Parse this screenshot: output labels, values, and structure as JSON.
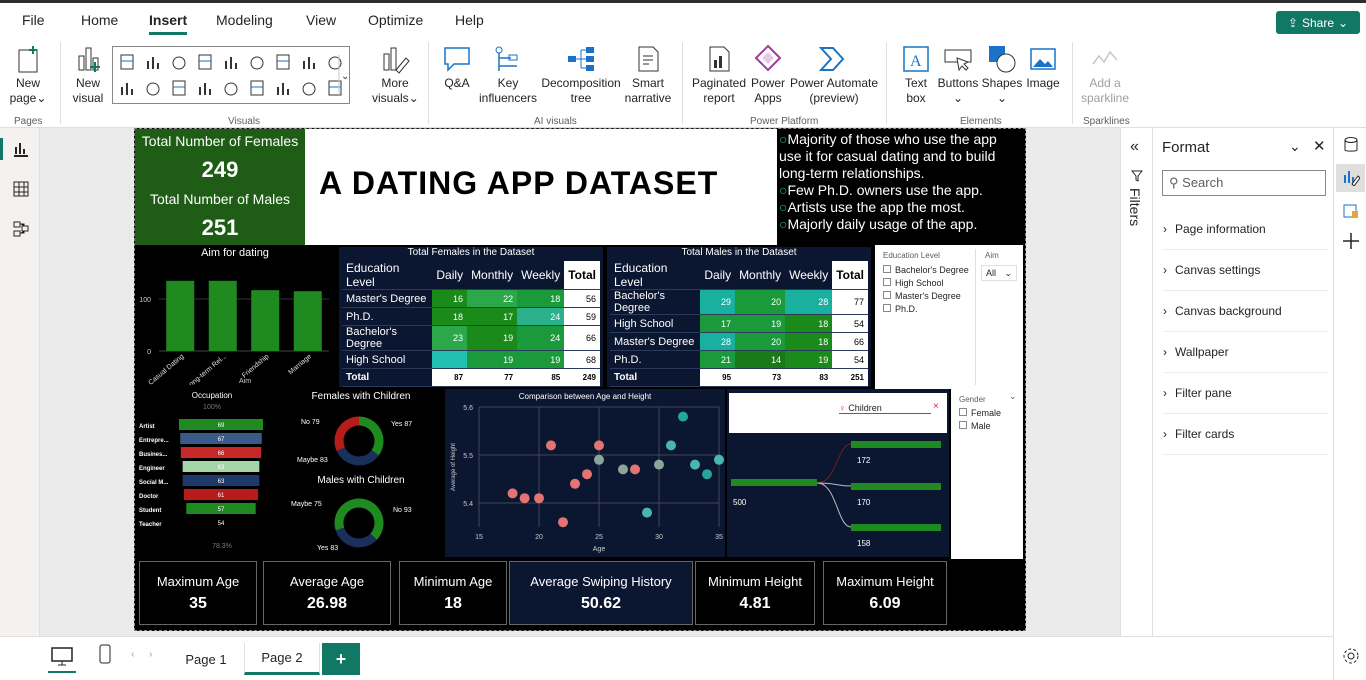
{
  "menu": [
    "File",
    "Home",
    "Insert",
    "Modeling",
    "View",
    "Optimize",
    "Help"
  ],
  "share": "Share",
  "ribbon": {
    "new_page": [
      "New",
      "page"
    ],
    "new_visual": [
      "New",
      "visual"
    ],
    "more_visuals": [
      "More",
      "visuals"
    ],
    "qa": "Q&A",
    "key_influencers": [
      "Key",
      "influencers"
    ],
    "decomposition": [
      "Decomposition",
      "tree"
    ],
    "smart_narrative": [
      "Smart",
      "narrative"
    ],
    "paginated": [
      "Paginated",
      "report"
    ],
    "power_apps": [
      "Power",
      "Apps"
    ],
    "power_automate": [
      "Power Automate",
      "(preview)"
    ],
    "text_box": [
      "Text",
      "box"
    ],
    "buttons": "Buttons",
    "shapes": "Shapes",
    "image": "Image",
    "sparkline": [
      "Add a",
      "sparkline"
    ],
    "groups": [
      "Pages",
      "Visuals",
      "AI visuals",
      "Power Platform",
      "Elements",
      "Sparklines"
    ]
  },
  "report": {
    "females_label": "Total Number of Females",
    "females_value": "249",
    "males_label": "Total Number of Males",
    "males_value": "251",
    "title": "A DATING APP DATASET",
    "insights": [
      "Majority of those who use the app use it for casual dating and to build long-term relationships.",
      "Few Ph.D. owners use the app.",
      "Artists use the app the most.",
      "Majorly daily usage of the app."
    ],
    "aim_chart": {
      "title": "Aim for dating",
      "ylabel": "Aim",
      "yticks": [
        "100",
        "0"
      ],
      "categories": [
        "Casual Dating",
        "Long-term Rel...",
        "Friendship",
        "Marriage"
      ],
      "values": [
        135,
        135,
        117,
        115
      ],
      "ylim": [
        0,
        150
      ]
    },
    "fem_table": {
      "title": "Total Females in the Dataset",
      "headers": [
        "Education Level",
        "Daily",
        "Monthly",
        "Weekly",
        "Total"
      ],
      "rows": [
        [
          "Master's Degree",
          "16",
          "22",
          "18",
          "56"
        ],
        [
          "Ph.D.",
          "18",
          "17",
          "24",
          "59"
        ],
        [
          "Bachelor's Degree",
          "23",
          "19",
          "24",
          "66"
        ],
        [
          "High School",
          "",
          "19",
          "19",
          "68"
        ]
      ],
      "total": [
        "Total",
        "87",
        "77",
        "85",
        "249"
      ]
    },
    "male_table": {
      "title": "Total Males in the Dataset",
      "headers": [
        "Education Level",
        "Daily",
        "Monthly",
        "Weekly",
        "Total"
      ],
      "rows": [
        [
          "Bachelor's Degree",
          "29",
          "20",
          "28",
          "77"
        ],
        [
          "High School",
          "17",
          "19",
          "18",
          "54"
        ],
        [
          "Master's Degree",
          "28",
          "20",
          "18",
          "66"
        ],
        [
          "Ph.D.",
          "21",
          "14",
          "19",
          "54"
        ]
      ],
      "total": [
        "Total",
        "95",
        "73",
        "83",
        "251"
      ]
    },
    "edu_slicer": {
      "title": "Education Level",
      "items": [
        "Bachelor's Degree",
        "High School",
        "Master's Degree",
        "Ph.D."
      ]
    },
    "aim_slicer": {
      "title": "Aim",
      "value": "All"
    },
    "occupation": {
      "title": "Occupation",
      "top": "100%",
      "bottom": "78.3%",
      "items": [
        [
          "Artist",
          "69"
        ],
        [
          "Entrepre...",
          "67"
        ],
        [
          "Busines...",
          "66"
        ],
        [
          "Engineer",
          "63"
        ],
        [
          "Social M...",
          "63"
        ],
        [
          "Doctor",
          "61"
        ],
        [
          "Student",
          "57"
        ],
        [
          "Teacher",
          "54"
        ]
      ]
    },
    "fem_children": {
      "title": "Females with Children",
      "no": "No 79",
      "yes": "Yes 87",
      "maybe": "Maybe 83"
    },
    "male_children": {
      "title": "Males with Children",
      "no": "No 93",
      "yes": "Yes 83",
      "maybe": "Maybe 75"
    },
    "scatter": {
      "title": "Comparison between Age and Height",
      "xlabel": "Age",
      "ylabel": "Average of Height",
      "xticks": [
        "15",
        "20",
        "25",
        "30",
        "35"
      ],
      "yticks": [
        "5.6",
        "5.5",
        "5.4"
      ]
    },
    "decomp": {
      "search": "Children",
      "root": "500",
      "nodes": [
        "172",
        "170",
        "158"
      ]
    },
    "gender_slicer": {
      "title": "Gender",
      "items": [
        "Female",
        "Male"
      ]
    },
    "cards": [
      [
        "Maximum Age",
        "35"
      ],
      [
        "Average Age",
        "26.98"
      ],
      [
        "Minimum Age",
        "18"
      ],
      [
        "Average Swiping History",
        "50.62"
      ],
      [
        "Minimum Height",
        "4.81"
      ],
      [
        "Maximum Height",
        "6.09"
      ]
    ]
  },
  "chart_data": {
    "type": "scatter",
    "title": "Comparison between Age and Height",
    "xlabel": "Age",
    "ylabel": "Average of Height",
    "xlim": [
      15,
      35
    ],
    "ylim": [
      5.35,
      5.6
    ],
    "points": [
      [
        17.8,
        5.42
      ],
      [
        18.8,
        5.41
      ],
      [
        20,
        5.41
      ],
      [
        21,
        5.52
      ],
      [
        22,
        5.36
      ],
      [
        23,
        5.44
      ],
      [
        24,
        5.46
      ],
      [
        25,
        5.52
      ],
      [
        25,
        5.49
      ],
      [
        27,
        5.47
      ],
      [
        28,
        5.47
      ],
      [
        29,
        5.38
      ],
      [
        30,
        5.48
      ],
      [
        31,
        5.52
      ],
      [
        32,
        5.58
      ],
      [
        33,
        5.48
      ],
      [
        34,
        5.46
      ],
      [
        35,
        5.49
      ]
    ]
  },
  "filters_label": "Filters",
  "format": {
    "title": "Format",
    "search": "Search",
    "items": [
      "Page information",
      "Canvas settings",
      "Canvas background",
      "Wallpaper",
      "Filter pane",
      "Filter cards"
    ]
  },
  "pages": [
    "Page 1",
    "Page 2"
  ]
}
